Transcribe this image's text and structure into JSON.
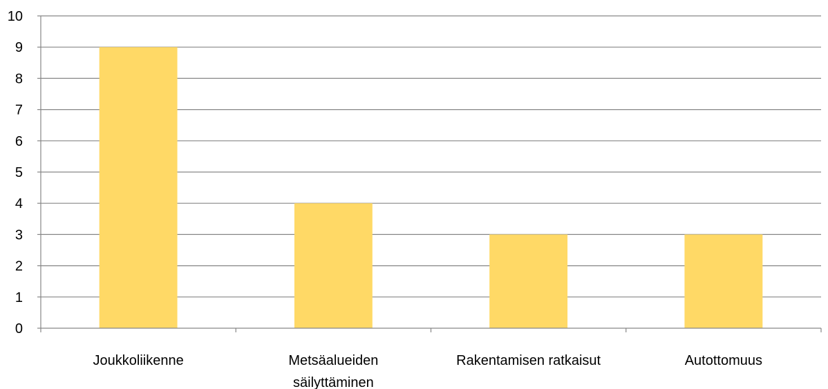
{
  "chart_data": {
    "type": "bar",
    "title": "",
    "xlabel": "",
    "ylabel": "",
    "categories": [
      [
        "Joukkoliikenne"
      ],
      [
        "Metsäalueiden",
        "säilyttäminen"
      ],
      [
        "Rakentamisen ratkaisut"
      ],
      [
        "Autottomuus"
      ]
    ],
    "values": [
      9,
      4,
      3,
      3
    ],
    "ylim": [
      0,
      10
    ],
    "yticks": [
      "0",
      "1",
      "2",
      "3",
      "4",
      "5",
      "6",
      "7",
      "8",
      "9",
      "10"
    ],
    "grid": true,
    "legend": "none",
    "colors": {
      "bar": "#FFD966",
      "grid": "#868686"
    }
  }
}
